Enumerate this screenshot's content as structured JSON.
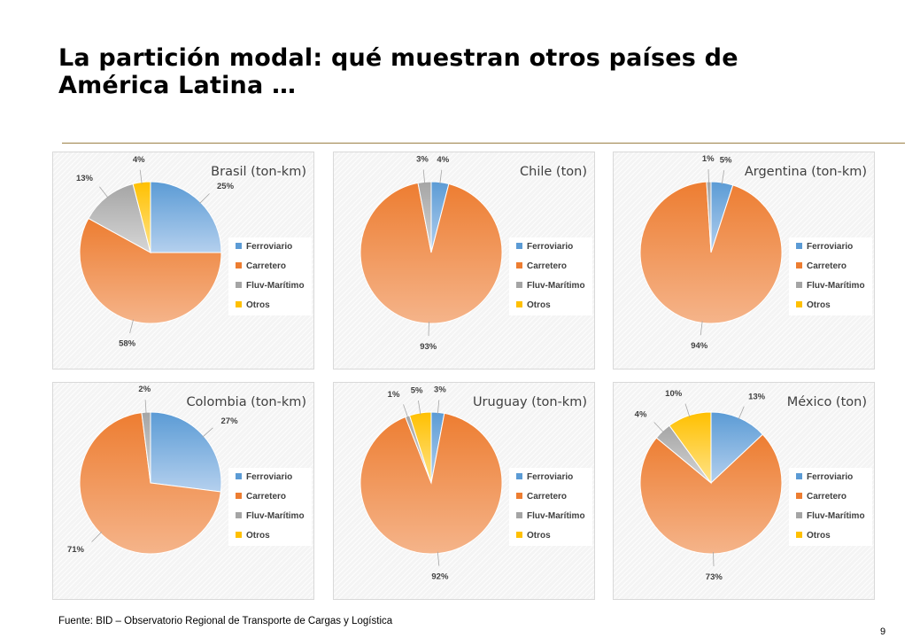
{
  "slide": {
    "title": "La partición modal: qué muestran otros países de América Latina …",
    "source": "Fuente: BID – Observatorio Regional de Transporte de Cargas y Logística",
    "page_number": "9"
  },
  "legend_labels": [
    "Ferroviario",
    "Carretero",
    "Fluv-Marítimo",
    "Otros"
  ],
  "colors": {
    "Ferroviario": [
      "#5b9bd5",
      "#b4d0ee"
    ],
    "Carretero": [
      "#ed7d31",
      "#f5b48a"
    ],
    "Fluv-Marítimo": [
      "#a5a5a5",
      "#d6d6d6"
    ],
    "Otros": [
      "#ffc000",
      "#ffe389"
    ]
  },
  "chart_data": [
    {
      "type": "pie",
      "title": "Brasil (ton-km)",
      "categories": [
        "Ferroviario",
        "Carretero",
        "Fluv-Marítimo",
        "Otros"
      ],
      "values": [
        25,
        58,
        13,
        4
      ],
      "data_labels": [
        "25%",
        "58%",
        "13%",
        "4%"
      ],
      "legend": "right"
    },
    {
      "type": "pie",
      "title": "Chile (ton)",
      "categories": [
        "Ferroviario",
        "Carretero",
        "Fluv-Marítimo",
        "Otros"
      ],
      "values": [
        4,
        93,
        3,
        0
      ],
      "data_labels": [
        "4%",
        "93%",
        "3%",
        ""
      ],
      "legend": "right"
    },
    {
      "type": "pie",
      "title": "Argentina (ton-km)",
      "categories": [
        "Ferroviario",
        "Carretero",
        "Fluv-Marítimo",
        "Otros"
      ],
      "values": [
        5,
        94,
        1,
        0
      ],
      "data_labels": [
        "5%",
        "94%",
        "1%",
        ""
      ],
      "legend": "right"
    },
    {
      "type": "pie",
      "title": "Colombia (ton-km)",
      "categories": [
        "Ferroviario",
        "Carretero",
        "Fluv-Marítimo",
        "Otros"
      ],
      "values": [
        27,
        71,
        2,
        0
      ],
      "data_labels": [
        "27%",
        "71%",
        "2%",
        ""
      ],
      "legend": "right"
    },
    {
      "type": "pie",
      "title": "Uruguay (ton-km)",
      "categories": [
        "Ferroviario",
        "Carretero",
        "Fluv-Marítimo",
        "Otros"
      ],
      "values": [
        3,
        92,
        1,
        5
      ],
      "data_labels": [
        "3%",
        "92%",
        "1%",
        "5%"
      ],
      "legend": "right"
    },
    {
      "type": "pie",
      "title": "México (ton)",
      "categories": [
        "Ferroviario",
        "Carretero",
        "Fluv-Marítimo",
        "Otros"
      ],
      "values": [
        13,
        73,
        4,
        10
      ],
      "data_labels": [
        "13%",
        "73%",
        "4%",
        "10%"
      ],
      "legend": "right"
    }
  ]
}
